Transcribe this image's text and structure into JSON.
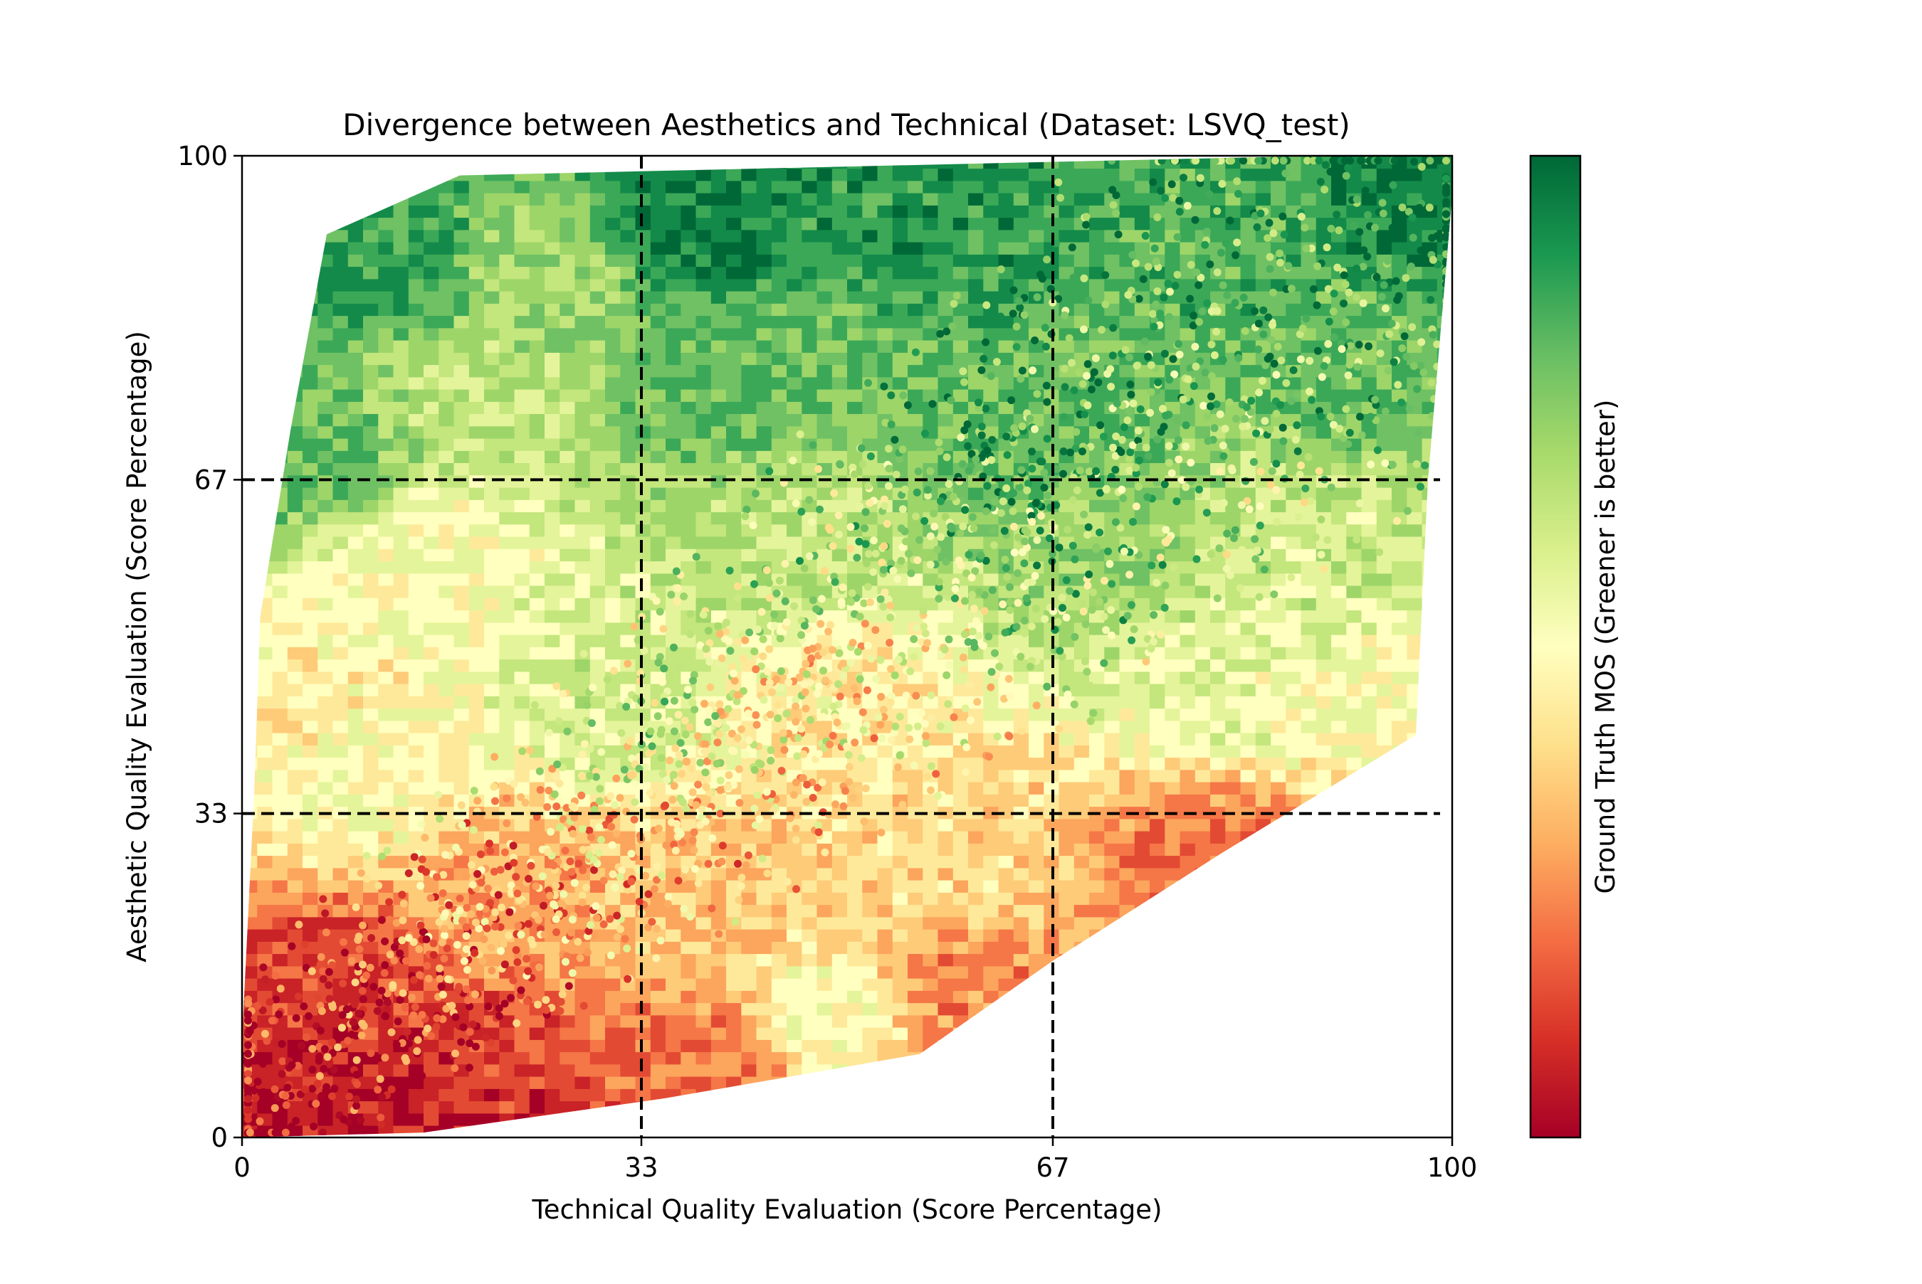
{
  "chart_data": {
    "type": "heatmap",
    "title": "Divergence between Aesthetics and Technical (Dataset: LSVQ_test)",
    "xlabel": "Technical Quality Evaluation (Score Percentage)",
    "ylabel": "Aesthetic Quality Evaluation (Score Percentage)",
    "colorbar_label": "Ground Truth MOS (Greener is better)",
    "colormap": "RdYlGn",
    "colormap_stops": [
      "#a50026",
      "#d73027",
      "#f46d43",
      "#fdae61",
      "#fee08b",
      "#ffffbf",
      "#d9ef8b",
      "#a6d96a",
      "#66bd63",
      "#1a9850",
      "#006837"
    ],
    "xlim": [
      0,
      100
    ],
    "ylim": [
      0,
      100
    ],
    "x_ticks": [
      "0",
      "33",
      "67",
      "100"
    ],
    "y_ticks": [
      "0",
      "33",
      "67",
      "100"
    ],
    "x_tick_values": [
      0,
      33,
      67,
      100
    ],
    "y_tick_values": [
      0,
      33,
      67,
      100
    ],
    "reference_lines_x": [
      33,
      67
    ],
    "reference_lines_y": [
      33,
      67
    ],
    "grid": false,
    "hull_points": [
      [
        0,
        0
      ],
      [
        15,
        0.5
      ],
      [
        35,
        4
      ],
      [
        56,
        8.5
      ],
      [
        67,
        18
      ],
      [
        81,
        29
      ],
      [
        97,
        41
      ],
      [
        98,
        67
      ],
      [
        100,
        96
      ],
      [
        100,
        100
      ],
      [
        89,
        100
      ],
      [
        18,
        98
      ],
      [
        7,
        92
      ],
      [
        4,
        72
      ],
      [
        1.5,
        53
      ],
      [
        1,
        35
      ],
      [
        0,
        10
      ]
    ],
    "mos_field_anchors": [
      {
        "x": 2,
        "y": 2,
        "mos": 0.02
      },
      {
        "x": 10,
        "y": 3,
        "mos": 0.05
      },
      {
        "x": 20,
        "y": 4,
        "mos": 0.1
      },
      {
        "x": 40,
        "y": 7,
        "mos": 0.2
      },
      {
        "x": 48,
        "y": 11,
        "mos": 0.5
      },
      {
        "x": 60,
        "y": 14,
        "mos": 0.25
      },
      {
        "x": 80,
        "y": 29,
        "mos": 0.2
      },
      {
        "x": 8,
        "y": 15,
        "mos": 0.12
      },
      {
        "x": 20,
        "y": 25,
        "mos": 0.3
      },
      {
        "x": 38,
        "y": 25,
        "mos": 0.35
      },
      {
        "x": 60,
        "y": 30,
        "mos": 0.4
      },
      {
        "x": 10,
        "y": 36,
        "mos": 0.5
      },
      {
        "x": 5,
        "y": 45,
        "mos": 0.45
      },
      {
        "x": 30,
        "y": 45,
        "mos": 0.6
      },
      {
        "x": 50,
        "y": 45,
        "mos": 0.45
      },
      {
        "x": 80,
        "y": 45,
        "mos": 0.55
      },
      {
        "x": 95,
        "y": 43,
        "mos": 0.5
      },
      {
        "x": 15,
        "y": 58,
        "mos": 0.5
      },
      {
        "x": 45,
        "y": 60,
        "mos": 0.65
      },
      {
        "x": 70,
        "y": 58,
        "mos": 0.7
      },
      {
        "x": 92,
        "y": 60,
        "mos": 0.6
      },
      {
        "x": 5,
        "y": 70,
        "mos": 0.8
      },
      {
        "x": 20,
        "y": 75,
        "mos": 0.65
      },
      {
        "x": 40,
        "y": 78,
        "mos": 0.8
      },
      {
        "x": 65,
        "y": 72,
        "mos": 0.8
      },
      {
        "x": 95,
        "y": 78,
        "mos": 0.8
      },
      {
        "x": 12,
        "y": 90,
        "mos": 0.88
      },
      {
        "x": 26,
        "y": 88,
        "mos": 0.7
      },
      {
        "x": 36,
        "y": 93,
        "mos": 0.95
      },
      {
        "x": 60,
        "y": 95,
        "mos": 0.9
      },
      {
        "x": 80,
        "y": 90,
        "mos": 0.82
      },
      {
        "x": 98,
        "y": 97,
        "mos": 0.95
      }
    ]
  }
}
